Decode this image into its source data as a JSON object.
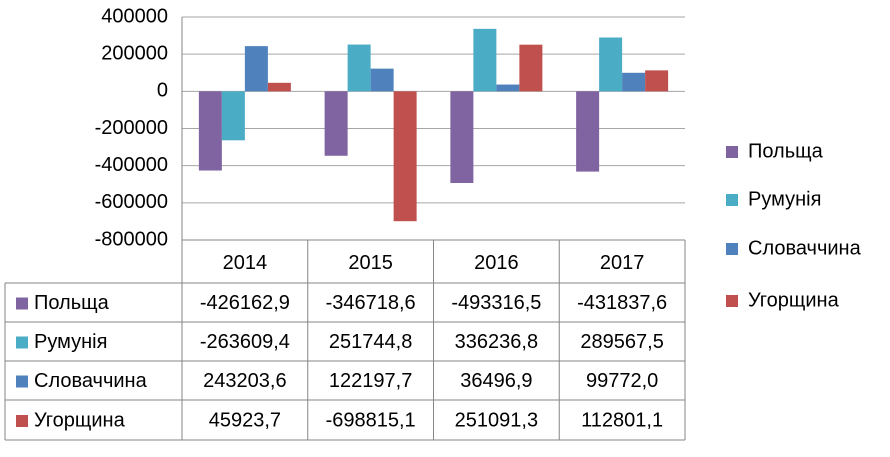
{
  "chart_data": {
    "type": "bar",
    "categories": [
      "2014",
      "2015",
      "2016",
      "2017"
    ],
    "series": [
      {
        "name": "Польща",
        "color": "#8064a2",
        "values": [
          -426162.9,
          -346718.6,
          -493316.5,
          -431837.6
        ],
        "value_labels": [
          "-426162,9",
          "-346718,6",
          "-493316,5",
          "-431837,6"
        ]
      },
      {
        "name": "Румунія",
        "color": "#4bacc6",
        "values": [
          -263609.4,
          251744.8,
          336236.8,
          289567.5
        ],
        "value_labels": [
          "-263609,4",
          "251744,8",
          "336236,8",
          "289567,5"
        ]
      },
      {
        "name": "Словаччина",
        "color": "#4f81bd",
        "values": [
          243203.6,
          122197.7,
          36496.9,
          99772.0
        ],
        "value_labels": [
          "243203,6",
          "122197,7",
          "36496,9",
          "99772,0"
        ]
      },
      {
        "name": "Угорщина",
        "color": "#c0504d",
        "values": [
          45923.7,
          -698815.1,
          251091.3,
          112801.1
        ],
        "value_labels": [
          "45923,7",
          "-698815,1",
          "251091,3",
          "112801,1"
        ]
      }
    ],
    "ylim": [
      -800000,
      400000
    ],
    "yticks": [
      -800000,
      -600000,
      -400000,
      -200000,
      0,
      200000,
      400000
    ],
    "grid": true,
    "legend": "right",
    "data_table": true
  }
}
